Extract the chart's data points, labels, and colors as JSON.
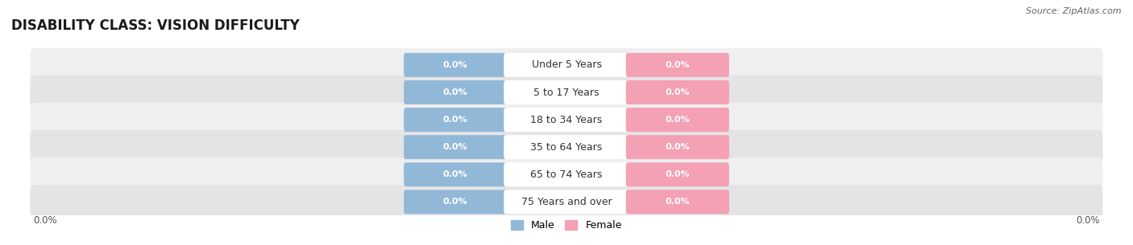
{
  "title": "DISABILITY CLASS: VISION DIFFICULTY",
  "source_text": "Source: ZipAtlas.com",
  "categories": [
    "Under 5 Years",
    "5 to 17 Years",
    "18 to 34 Years",
    "35 to 64 Years",
    "65 to 74 Years",
    "75 Years and over"
  ],
  "male_values": [
    0.0,
    0.0,
    0.0,
    0.0,
    0.0,
    0.0
  ],
  "female_values": [
    0.0,
    0.0,
    0.0,
    0.0,
    0.0,
    0.0
  ],
  "male_color": "#92b8d8",
  "female_color": "#f4a0b5",
  "male_label": "Male",
  "female_label": "Female",
  "row_bg_color_odd": "#efefef",
  "row_bg_color_even": "#e4e4e4",
  "title_fontsize": 12,
  "label_fontsize": 9,
  "value_fontsize": 8,
  "background_color": "#ffffff",
  "axis_label_left": "0.0%",
  "axis_label_right": "0.0%"
}
